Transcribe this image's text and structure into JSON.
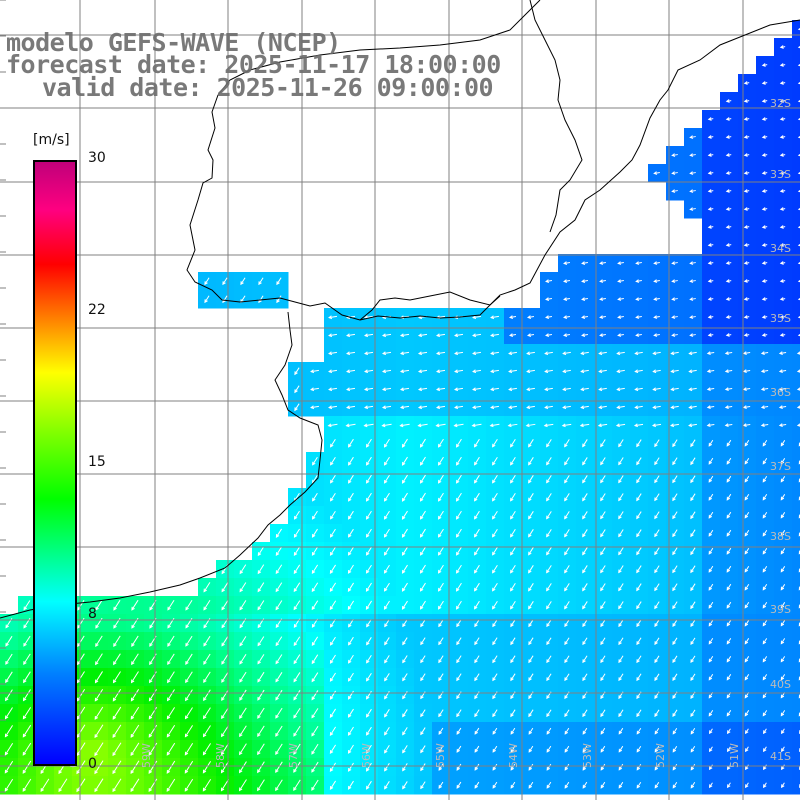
{
  "title": {
    "line1": "modelo GEFS-WAVE (NCEP)",
    "line2": "forecast date: 2025-11-17 18:00:00",
    "line3": "valid date: 2025-11-26 09:00:00"
  },
  "colorbar": {
    "unit": "[m/s]",
    "ticks": [
      {
        "label": "30",
        "value": 30
      },
      {
        "label": "22",
        "value": 22
      },
      {
        "label": "15",
        "value": 15
      },
      {
        "label": "8",
        "value": 8
      },
      {
        "label": "0",
        "value": 0
      }
    ],
    "colors": [
      "#0000ff",
      "#0080ff",
      "#00ffff",
      "#00ff00",
      "#80ff00",
      "#ffff00",
      "#ff8000",
      "#ff0000",
      "#ff0080",
      "#c0007a"
    ]
  },
  "map": {
    "lon_labels": [
      "60W",
      "59W",
      "58W",
      "57W",
      "56W",
      "55W",
      "54W",
      "53W",
      "52W",
      "51W"
    ],
    "lat_labels": [
      "32S",
      "33S",
      "34S",
      "35S",
      "36S",
      "37S",
      "38S",
      "39S",
      "40S",
      "41S"
    ],
    "land_color": "#ffffff",
    "coast_color": "#000000",
    "grid_color": "#808080",
    "arrow_color": "#ffffff"
  }
}
